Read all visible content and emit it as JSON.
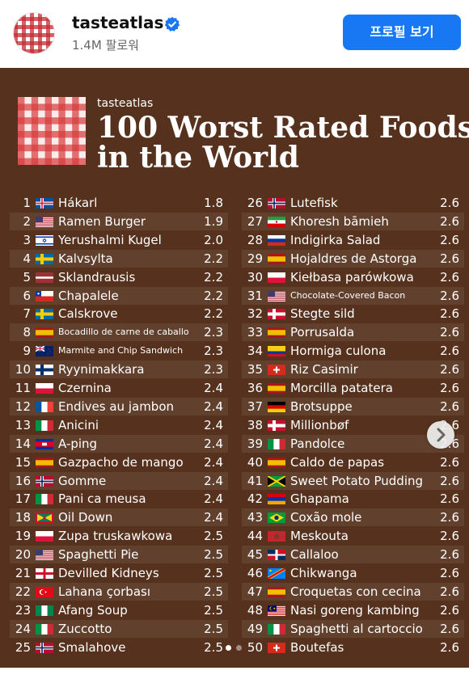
{
  "account": {
    "name": "tasteatlas",
    "followers": "1.4M 팔로워",
    "profile_button": "프로필 보기",
    "verified_color": "#1877f2"
  },
  "poster": {
    "brand": "tasteatlas",
    "title_line1": "100 Worst Rated Foods",
    "title_line2": "in the World",
    "background_color": "#56321e"
  },
  "foods": [
    {
      "rank": "1",
      "name": "Hákarl",
      "score": "1.8",
      "flag": "iceland"
    },
    {
      "rank": "2",
      "name": "Ramen Burger",
      "score": "1.9",
      "flag": "usa"
    },
    {
      "rank": "3",
      "name": "Yerushalmi Kugel",
      "score": "2.0",
      "flag": "israel"
    },
    {
      "rank": "4",
      "name": "Kalvsylta",
      "score": "2.2",
      "flag": "sweden"
    },
    {
      "rank": "5",
      "name": "Sklandrausis",
      "score": "2.2",
      "flag": "latvia"
    },
    {
      "rank": "6",
      "name": "Chapalele",
      "score": "2.2",
      "flag": "chile"
    },
    {
      "rank": "7",
      "name": "Calskrove",
      "score": "2.2",
      "flag": "sweden"
    },
    {
      "rank": "8",
      "name": "Bocadillo de carne de caballo",
      "score": "2.3",
      "flag": "spain",
      "small": true
    },
    {
      "rank": "9",
      "name": "Marmite and Chip Sandwich",
      "score": "2.3",
      "flag": "new-zealand",
      "small": true
    },
    {
      "rank": "10",
      "name": "Ryynimakkara",
      "score": "2.3",
      "flag": "finland"
    },
    {
      "rank": "11",
      "name": "Czernina",
      "score": "2.4",
      "flag": "poland"
    },
    {
      "rank": "12",
      "name": "Endives au jambon",
      "score": "2.4",
      "flag": "france"
    },
    {
      "rank": "13",
      "name": "Anicini",
      "score": "2.4",
      "flag": "italy"
    },
    {
      "rank": "14",
      "name": "A-ping",
      "score": "2.4",
      "flag": "cambodia"
    },
    {
      "rank": "15",
      "name": "Gazpacho de mango",
      "score": "2.4",
      "flag": "spain"
    },
    {
      "rank": "16",
      "name": "Gomme",
      "score": "2.4",
      "flag": "norway"
    },
    {
      "rank": "17",
      "name": "Pani ca meusa",
      "score": "2.4",
      "flag": "italy"
    },
    {
      "rank": "18",
      "name": "Oil Down",
      "score": "2.4",
      "flag": "grenada"
    },
    {
      "rank": "19",
      "name": "Zupa truskawkowa",
      "score": "2.5",
      "flag": "poland"
    },
    {
      "rank": "20",
      "name": "Spaghetti Pie",
      "score": "2.5",
      "flag": "usa"
    },
    {
      "rank": "21",
      "name": "Devilled Kidneys",
      "score": "2.5",
      "flag": "england"
    },
    {
      "rank": "22",
      "name": "Lahana çorbası",
      "score": "2.5",
      "flag": "turkey"
    },
    {
      "rank": "23",
      "name": "Afang Soup",
      "score": "2.5",
      "flag": "nigeria"
    },
    {
      "rank": "24",
      "name": "Zuccotto",
      "score": "2.5",
      "flag": "italy"
    },
    {
      "rank": "25",
      "name": "Smalahove",
      "score": "2.5",
      "flag": "norway"
    },
    {
      "rank": "26",
      "name": "Lutefisk",
      "score": "2.6",
      "flag": "norway"
    },
    {
      "rank": "27",
      "name": "Khoresh bāmieh",
      "score": "2.6",
      "flag": "iran"
    },
    {
      "rank": "28",
      "name": "Indigirka Salad",
      "score": "2.6",
      "flag": "russia"
    },
    {
      "rank": "29",
      "name": "Hojaldres de Astorga",
      "score": "2.6",
      "flag": "spain"
    },
    {
      "rank": "30",
      "name": "Kiełbasa parówkowa",
      "score": "2.6",
      "flag": "poland"
    },
    {
      "rank": "31",
      "name": "Chocolate-Covered Bacon",
      "score": "2.6",
      "flag": "usa",
      "small": true
    },
    {
      "rank": "32",
      "name": "Stegte sild",
      "score": "2.6",
      "flag": "denmark"
    },
    {
      "rank": "33",
      "name": "Porrusalda",
      "score": "2.6",
      "flag": "spain"
    },
    {
      "rank": "34",
      "name": "Hormiga culona",
      "score": "2.6",
      "flag": "colombia"
    },
    {
      "rank": "35",
      "name": "Riz Casimir",
      "score": "2.6",
      "flag": "switzerland"
    },
    {
      "rank": "36",
      "name": "Morcilla patatera",
      "score": "2.6",
      "flag": "spain"
    },
    {
      "rank": "37",
      "name": "Brotsuppe",
      "score": "2.6",
      "flag": "germany"
    },
    {
      "rank": "38",
      "name": "Millionbøf",
      "score": "2.6",
      "flag": "denmark"
    },
    {
      "rank": "39",
      "name": "Pandolce",
      "score": "2.6",
      "flag": "italy"
    },
    {
      "rank": "40",
      "name": "Caldo de papas",
      "score": "2.6",
      "flag": "spain"
    },
    {
      "rank": "41",
      "name": "Sweet Potato Pudding",
      "score": "2.6",
      "flag": "jamaica"
    },
    {
      "rank": "42",
      "name": "Ghapama",
      "score": "2.6",
      "flag": "armenia"
    },
    {
      "rank": "43",
      "name": "Coxão mole",
      "score": "2.6",
      "flag": "brazil"
    },
    {
      "rank": "44",
      "name": "Meskouta",
      "score": "2.6",
      "flag": "morocco"
    },
    {
      "rank": "45",
      "name": "Callaloo",
      "score": "2.6",
      "flag": "dominican-republic"
    },
    {
      "rank": "46",
      "name": "Chikwanga",
      "score": "2.6",
      "flag": "dr-congo"
    },
    {
      "rank": "47",
      "name": "Croquetas con cecina",
      "score": "2.6",
      "flag": "spain"
    },
    {
      "rank": "48",
      "name": "Nasi goreng kambing",
      "score": "2.6",
      "flag": "malaysia"
    },
    {
      "rank": "49",
      "name": "Spaghetti al cartoccio",
      "score": "2.6",
      "flag": "italy"
    },
    {
      "rank": "50",
      "name": "Boutefas",
      "score": "2.6",
      "flag": "switzerland"
    }
  ],
  "carousel": {
    "next_icon": "chevron-right-icon",
    "page_count": 2,
    "active_page": 1
  }
}
